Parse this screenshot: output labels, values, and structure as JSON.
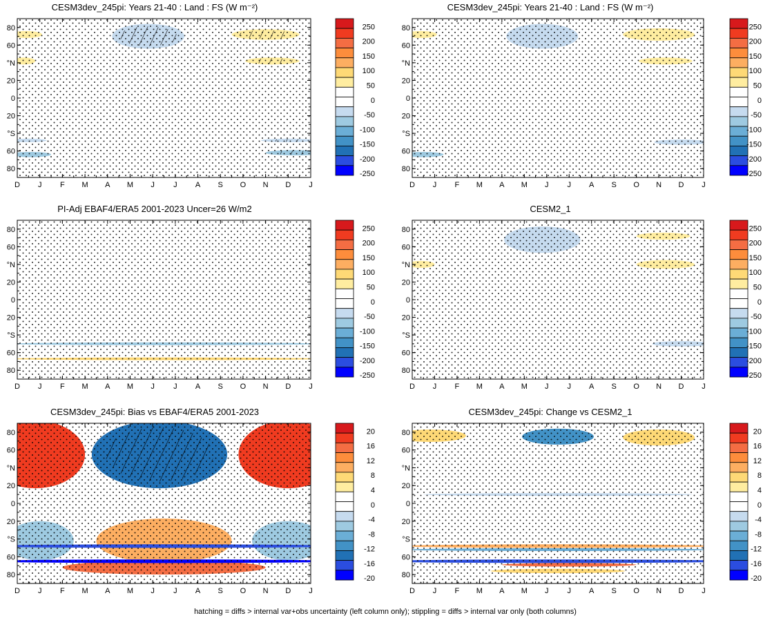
{
  "footer": "hatching = diffs > internal var+obs uncertainty (left column only); stippling = diffs > internal var only (both columns)",
  "colorbars": {
    "large": {
      "labels": [
        "250",
        "200",
        "150",
        "100",
        "50",
        "0",
        "-50",
        "-100",
        "-150",
        "-200",
        "-250"
      ],
      "colors": [
        "#d7191c",
        "#f03b20",
        "#f46d43",
        "#fd8d3c",
        "#fdae61",
        "#fed976",
        "#ffeda0",
        "#ffffff",
        "#ffffff",
        "#c6dbef",
        "#9ecae1",
        "#6baed6",
        "#4292c6",
        "#2171b5",
        "#2b4de0",
        "#0000ff"
      ]
    },
    "small": {
      "labels": [
        "20",
        "16",
        "12",
        "8",
        "4",
        "0",
        "-4",
        "-8",
        "-12",
        "-16",
        "-20"
      ],
      "colors": [
        "#d7191c",
        "#f03b20",
        "#f46d43",
        "#fd8d3c",
        "#fdae61",
        "#fed976",
        "#ffeda0",
        "#ffffff",
        "#ffffff",
        "#c6dbef",
        "#9ecae1",
        "#6baed6",
        "#4292c6",
        "#2171b5",
        "#2b4de0",
        "#0000ff"
      ]
    }
  },
  "chart_data": [
    {
      "type": "heatmap",
      "id": "p1",
      "title": "CESM3dev_245pi: Years 21-40 : Land : FS (W m⁻²)",
      "x_ticks": [
        "D",
        "J",
        "F",
        "M",
        "A",
        "M",
        "J",
        "J",
        "A",
        "S",
        "O",
        "N",
        "D",
        "J"
      ],
      "y_ticks": [
        "80",
        "60",
        "°N",
        "20",
        "0",
        "20",
        "°S",
        "60",
        "80"
      ],
      "ylim": [
        -90,
        90
      ],
      "colorbar": "large",
      "features": [
        {
          "month": 5.8,
          "lat": 70,
          "dm": 1.6,
          "dl": 14,
          "value": -60,
          "hatch": true
        },
        {
          "month": 0.4,
          "lat": 72,
          "dm": 0.7,
          "dl": 4,
          "value": 40
        },
        {
          "month": 11.0,
          "lat": 72,
          "dm": 1.5,
          "dl": 6,
          "value": 40,
          "hatch": true
        },
        {
          "month": 11.3,
          "lat": 42,
          "dm": 1.2,
          "dl": 4,
          "value": 40,
          "hatch": true
        },
        {
          "month": 0.3,
          "lat": 42,
          "dm": 0.5,
          "dl": 4,
          "value": 40
        },
        {
          "month": 6.5,
          "lat": -48,
          "dm": 2.5,
          "dl": 2,
          "value": 30
        },
        {
          "month": 6.5,
          "lat": -58,
          "dm": 3.5,
          "dl": 2,
          "value": 30
        },
        {
          "month": 6.5,
          "lat": -67,
          "dm": 4.0,
          "dl": 2,
          "value": 30
        },
        {
          "month": 12.0,
          "lat": -48,
          "dm": 1.2,
          "dl": 2,
          "value": -60,
          "hatch": true
        },
        {
          "month": 12.3,
          "lat": -62,
          "dm": 1.3,
          "dl": 3,
          "value": -80,
          "hatch": true
        },
        {
          "month": 0.5,
          "lat": -48,
          "dm": 0.8,
          "dl": 2,
          "value": -60
        },
        {
          "month": 0.6,
          "lat": -64,
          "dm": 0.9,
          "dl": 3,
          "value": -80
        }
      ]
    },
    {
      "type": "heatmap",
      "id": "p2",
      "title": "CESM3dev_245pi: Years 21-40 : Land : FS (W m⁻²)",
      "x_ticks": [
        "D",
        "J",
        "F",
        "M",
        "A",
        "M",
        "J",
        "J",
        "A",
        "S",
        "O",
        "N",
        "D",
        "J"
      ],
      "y_ticks": [
        "80",
        "60",
        "°N",
        "20",
        "0",
        "20",
        "°S",
        "60",
        "80"
      ],
      "ylim": [
        -90,
        90
      ],
      "colorbar": "large",
      "features": [
        {
          "month": 5.8,
          "lat": 70,
          "dm": 1.6,
          "dl": 14,
          "value": -60
        },
        {
          "month": 0.4,
          "lat": 72,
          "dm": 0.7,
          "dl": 4,
          "value": 40
        },
        {
          "month": 11.0,
          "lat": 72,
          "dm": 1.6,
          "dl": 7,
          "value": 40
        },
        {
          "month": 11.3,
          "lat": 42,
          "dm": 1.2,
          "dl": 4,
          "value": 40
        },
        {
          "month": 6.5,
          "lat": -48,
          "dm": 2.5,
          "dl": 2,
          "value": 30
        },
        {
          "month": 6.5,
          "lat": -67,
          "dm": 4.0,
          "dl": 2,
          "value": 30
        },
        {
          "month": 12.0,
          "lat": -50,
          "dm": 1.2,
          "dl": 3,
          "value": -60
        },
        {
          "month": 0.5,
          "lat": -64,
          "dm": 0.9,
          "dl": 3,
          "value": -80
        }
      ]
    },
    {
      "type": "heatmap",
      "id": "p3",
      "title": "PI-Adj EBAF4/ERA5 2001-2023 Uncer=26 W/m2",
      "x_ticks": [
        "D",
        "J",
        "F",
        "M",
        "A",
        "M",
        "J",
        "J",
        "A",
        "S",
        "O",
        "N",
        "D",
        "J"
      ],
      "y_ticks": [
        "80",
        "60",
        "°N",
        "20",
        "0",
        "20",
        "°S",
        "60",
        "80"
      ],
      "ylim": [
        -90,
        90
      ],
      "colorbar": "large",
      "features": [
        {
          "month": 6.5,
          "lat": -50,
          "dm": 7.0,
          "dl": 1.0,
          "value": -80
        },
        {
          "month": 6.5,
          "lat": -67,
          "dm": 7.0,
          "dl": 1.0,
          "value": 100
        }
      ]
    },
    {
      "type": "heatmap",
      "id": "p4",
      "title": "CESM2_1",
      "x_ticks": [
        "D",
        "J",
        "F",
        "M",
        "A",
        "M",
        "J",
        "J",
        "A",
        "S",
        "O",
        "N",
        "D",
        "J"
      ],
      "y_ticks": [
        "80",
        "60",
        "°N",
        "20",
        "0",
        "20",
        "°S",
        "60",
        "80"
      ],
      "ylim": [
        -90,
        90
      ],
      "colorbar": "large",
      "features": [
        {
          "month": 5.8,
          "lat": 68,
          "dm": 1.7,
          "dl": 15,
          "value": -60
        },
        {
          "month": 11.2,
          "lat": 72,
          "dm": 1.2,
          "dl": 4,
          "value": 40
        },
        {
          "month": 11.3,
          "lat": 40,
          "dm": 1.3,
          "dl": 5,
          "value": 40
        },
        {
          "month": 0.4,
          "lat": 40,
          "dm": 0.6,
          "dl": 4,
          "value": 40
        },
        {
          "month": 6.5,
          "lat": -48,
          "dm": 2.6,
          "dl": 2,
          "value": 30
        },
        {
          "month": 6.5,
          "lat": -55,
          "dm": 3.8,
          "dl": 2,
          "value": 30
        },
        {
          "month": 12.0,
          "lat": -50,
          "dm": 1.3,
          "dl": 3,
          "value": -60
        }
      ]
    },
    {
      "type": "heatmap",
      "id": "p5",
      "title": "CESM3dev_245pi: Bias vs EBAF4/ERA5 2001-2023",
      "x_ticks": [
        "D",
        "J",
        "F",
        "M",
        "A",
        "M",
        "J",
        "J",
        "A",
        "S",
        "O",
        "N",
        "D",
        "J"
      ],
      "y_ticks": [
        "80",
        "60",
        "°N",
        "20",
        "0",
        "20",
        "°S",
        "60",
        "80"
      ],
      "ylim": [
        -90,
        90
      ],
      "colorbar": "small",
      "features": [
        {
          "month": 0.8,
          "lat": 55,
          "dm": 2.2,
          "dl": 38,
          "value": 18
        },
        {
          "month": 12.0,
          "lat": 55,
          "dm": 2.2,
          "dl": 38,
          "value": 18
        },
        {
          "month": 6.3,
          "lat": 55,
          "dm": 3.0,
          "dl": 38,
          "value": -14,
          "hatch": true
        },
        {
          "month": 6.5,
          "lat": -42,
          "dm": 3.0,
          "dl": 25,
          "value": 11
        },
        {
          "month": 6.5,
          "lat": -72,
          "dm": 4.5,
          "dl": 8,
          "value": 16
        },
        {
          "month": 1.0,
          "lat": -42,
          "dm": 1.5,
          "dl": 22,
          "value": -8
        },
        {
          "month": 12.0,
          "lat": -42,
          "dm": 1.6,
          "dl": 22,
          "value": -8
        },
        {
          "month": 6.5,
          "lat": -48,
          "dm": 8.0,
          "dl": 2.0,
          "value": -18
        },
        {
          "month": 6.5,
          "lat": -65,
          "dm": 8.0,
          "dl": 2.0,
          "value": -20
        }
      ]
    },
    {
      "type": "heatmap",
      "id": "p6",
      "title": "CESM3dev_245pi: Change vs CESM2_1",
      "x_ticks": [
        "D",
        "J",
        "F",
        "M",
        "A",
        "M",
        "J",
        "J",
        "A",
        "S",
        "O",
        "N",
        "D",
        "J"
      ],
      "y_ticks": [
        "80",
        "60",
        "°N",
        "20",
        "0",
        "20",
        "°S",
        "60",
        "80"
      ],
      "ylim": [
        -90,
        90
      ],
      "colorbar": "small",
      "features": [
        {
          "month": 0.8,
          "lat": 76,
          "dm": 1.6,
          "dl": 7,
          "value": 8
        },
        {
          "month": 11.0,
          "lat": 74,
          "dm": 1.6,
          "dl": 9,
          "value": 8
        },
        {
          "month": 6.5,
          "lat": 75,
          "dm": 1.6,
          "dl": 9,
          "value": -12
        },
        {
          "month": 6.5,
          "lat": -48,
          "dm": 7.0,
          "dl": 2.0,
          "value": 10
        },
        {
          "month": 6.5,
          "lat": -52,
          "dm": 7.0,
          "dl": 1.5,
          "value": -10
        },
        {
          "month": 6.5,
          "lat": -65,
          "dm": 8.0,
          "dl": 2.0,
          "value": -18
        },
        {
          "month": 7.0,
          "lat": -69,
          "dm": 3.0,
          "dl": 2,
          "value": 14
        },
        {
          "month": 6.5,
          "lat": -76,
          "dm": 3.0,
          "dl": 2.5,
          "value": 6
        },
        {
          "month": 6.5,
          "lat": 10,
          "dm": 6.0,
          "dl": 1.2,
          "value": -5
        }
      ]
    }
  ]
}
